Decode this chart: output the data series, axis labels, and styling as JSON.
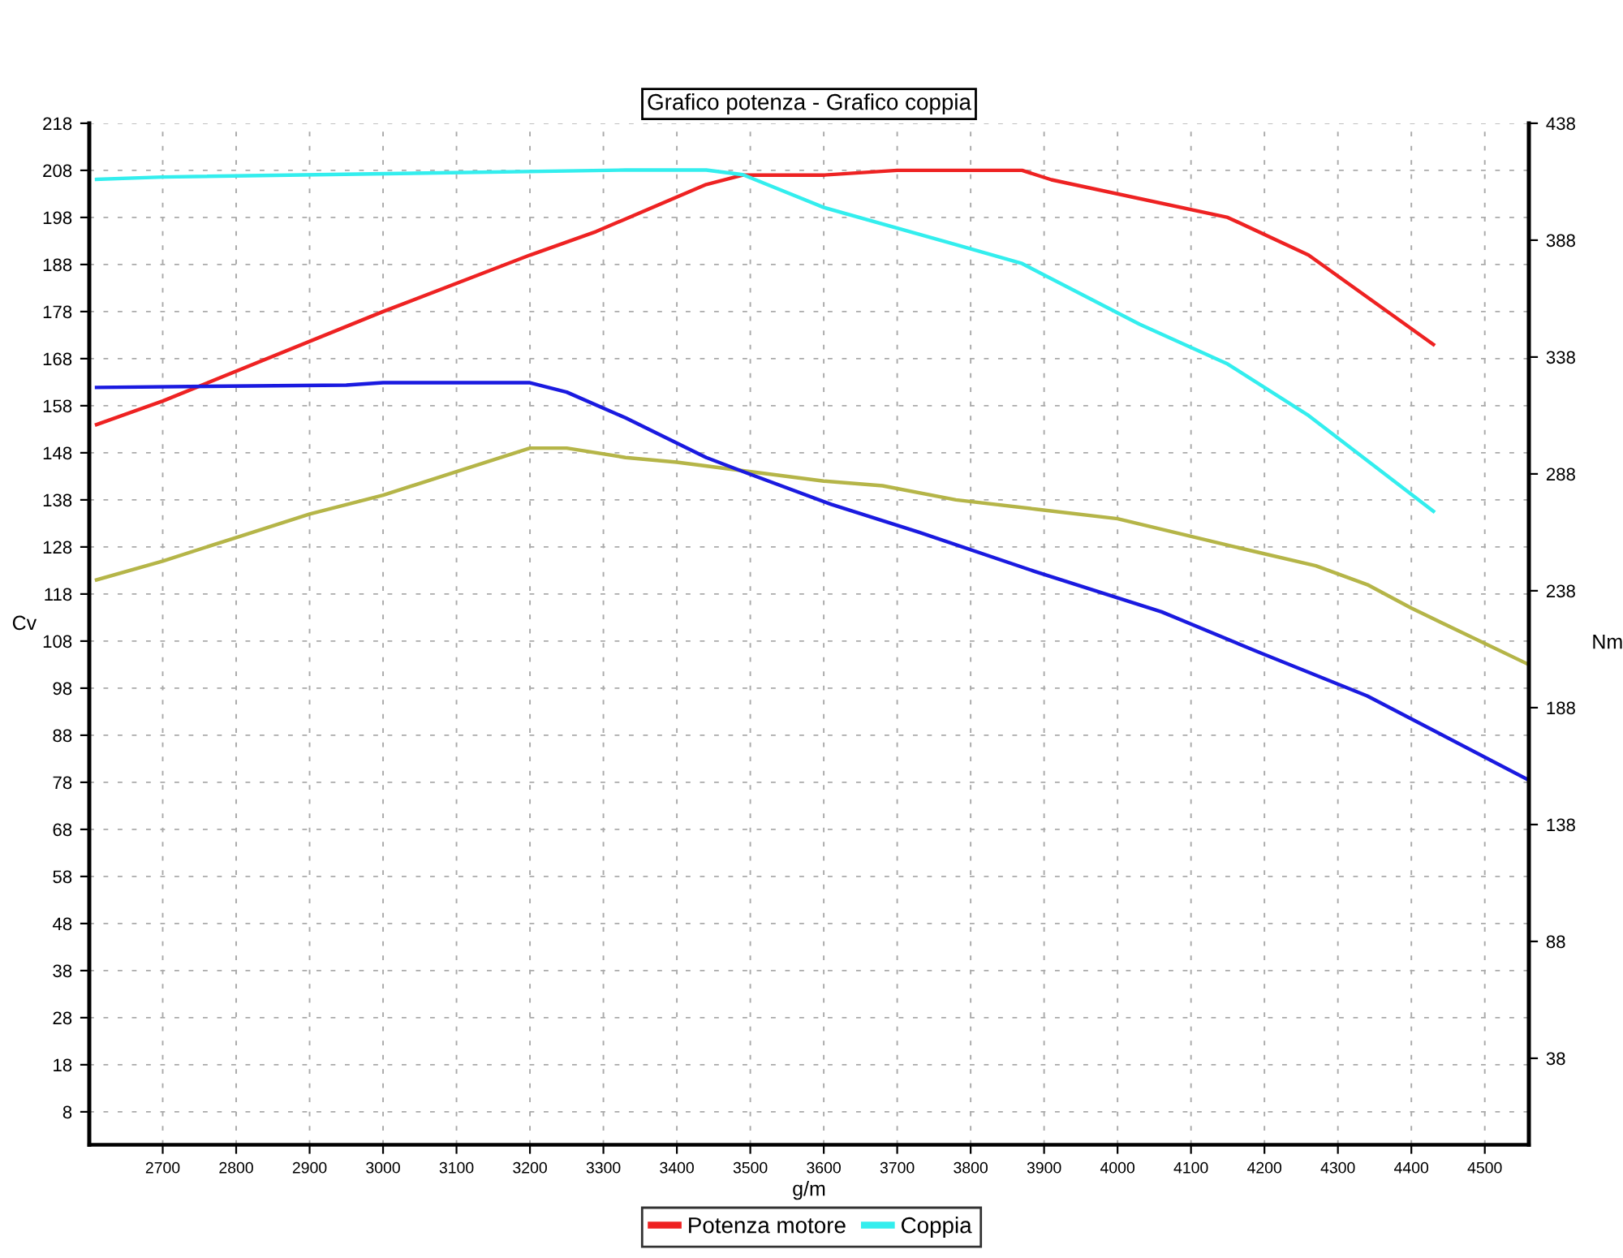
{
  "chart_data": {
    "type": "line",
    "title": "Grafico potenza - Grafico coppia",
    "xlabel": "g/m",
    "ylabel": "Cv",
    "y2label": "Nm",
    "xlim": [
      2600,
      4560
    ],
    "xticks": [
      2700,
      2800,
      2900,
      3000,
      3100,
      3200,
      3300,
      3400,
      3500,
      3600,
      3700,
      3800,
      3900,
      4000,
      4100,
      4200,
      4300,
      4400,
      4500
    ],
    "ylim": [
      1,
      218
    ],
    "yticks": [
      8,
      18,
      28,
      38,
      48,
      58,
      68,
      78,
      88,
      98,
      108,
      118,
      128,
      138,
      148,
      158,
      168,
      178,
      188,
      198,
      208,
      218
    ],
    "y2lim": [
      1,
      438
    ],
    "y2ticks": [
      38,
      88,
      138,
      188,
      238,
      288,
      338,
      388,
      438
    ],
    "grid": true,
    "legend": "bottom",
    "line_style": "solid",
    "marker": "none",
    "series": [
      {
        "name": "Potenza motore",
        "color": "#ee2222",
        "x": [
          2610,
          2700,
          3000,
          3200,
          3290,
          3440,
          3490,
          3600,
          3700,
          3870,
          3910,
          4150,
          4260,
          4430
        ],
        "values": [
          154,
          159,
          178,
          190,
          195,
          205,
          207,
          207,
          208,
          208,
          206,
          198,
          190,
          171
        ]
      },
      {
        "name": "Coppia",
        "color": "#33eeee",
        "axis": "y2",
        "x": [
          2610,
          2700,
          3330,
          3440,
          3490,
          3600,
          3770,
          3870,
          4030,
          4150,
          4260,
          4430
        ],
        "values": [
          414,
          415,
          418,
          418,
          416,
          402,
          387,
          378,
          352,
          335,
          313,
          272
        ]
      },
      {
        "color": "#1a1ae0",
        "axis": "y2",
        "x": [
          2610,
          2950,
          3000,
          3200,
          3250,
          3330,
          3440,
          3490,
          3610,
          3730,
          3890,
          4060,
          4190,
          4340,
          4560
        ],
        "values": [
          325,
          326,
          327,
          327,
          323,
          312,
          295,
          289,
          275,
          263,
          246,
          229,
          212,
          193,
          157
        ]
      },
      {
        "color": "#b5b548",
        "x": [
          2610,
          2700,
          2800,
          2900,
          3000,
          3100,
          3200,
          3250,
          3330,
          3400,
          3600,
          3680,
          3780,
          3890,
          4000,
          4160,
          4270,
          4340,
          4400,
          4560
        ],
        "values": [
          121,
          125,
          130,
          135,
          139,
          144,
          149,
          149,
          147,
          146,
          142,
          141,
          138,
          136,
          134,
          128,
          124,
          120,
          115,
          103
        ]
      }
    ]
  }
}
